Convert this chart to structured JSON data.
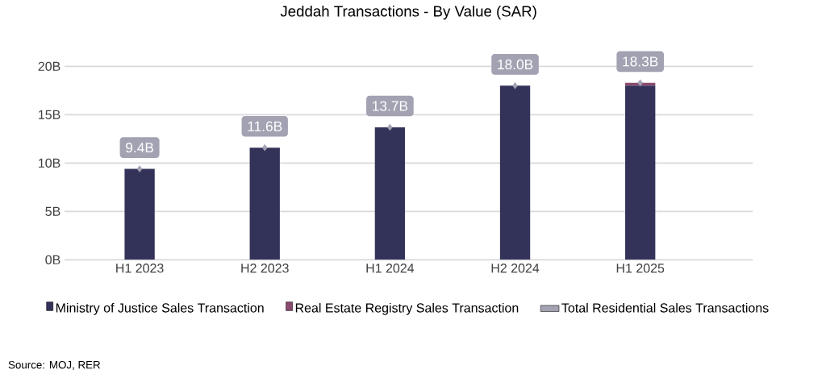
{
  "chart_data": {
    "type": "bar",
    "title": "Jeddah Transactions - By Value (SAR)",
    "stacked": true,
    "categories": [
      "H1 2023",
      "H2 2023",
      "H1 2024",
      "H2 2024",
      "H1 2025"
    ],
    "series": [
      {
        "name": "Ministry of Justice Sales Transaction",
        "color": "#33335a",
        "values": [
          9.4,
          11.6,
          13.7,
          18.0,
          18.0
        ]
      },
      {
        "name": "Real Estate Registry Sales Transaction",
        "color": "#8a4a6e",
        "values": [
          0,
          0,
          0,
          0,
          0.3
        ]
      },
      {
        "name": "Total Residential Sales Transactions",
        "color": "#a3a2b3",
        "type": "scatter",
        "values": [
          9.4,
          11.6,
          13.7,
          18.0,
          18.3
        ],
        "value_labels": [
          "9.4B",
          "11.6B",
          "13.7B",
          "18.0B",
          "18.3B"
        ]
      }
    ],
    "ylim": [
      0,
      20
    ],
    "yticks": [
      {
        "value": 0,
        "label": "0B"
      },
      {
        "value": 5,
        "label": "5B"
      },
      {
        "value": 10,
        "label": "10B"
      },
      {
        "value": 15,
        "label": "15B"
      },
      {
        "value": 20,
        "label": "20B"
      }
    ],
    "grid": "y",
    "legend": "bottom",
    "annotations": [
      "Source: MOJ, RER"
    ]
  }
}
